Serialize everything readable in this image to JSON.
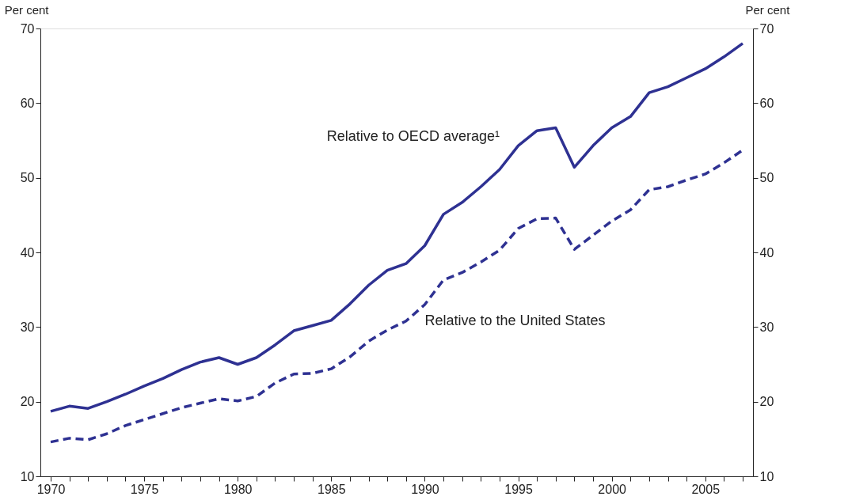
{
  "chart_data": {
    "type": "line",
    "x": [
      1970,
      1971,
      1972,
      1973,
      1974,
      1975,
      1976,
      1977,
      1978,
      1979,
      1980,
      1981,
      1982,
      1983,
      1984,
      1985,
      1986,
      1987,
      1988,
      1989,
      1990,
      1991,
      1992,
      1993,
      1994,
      1995,
      1996,
      1997,
      1998,
      1999,
      2000,
      2001,
      2002,
      2003,
      2004,
      2005,
      2006,
      2007
    ],
    "series": [
      {
        "name": "Relative to OECD average¹",
        "color": "#2e3192",
        "line_style": "solid",
        "values": [
          18.7,
          19.4,
          19.1,
          20.0,
          21.0,
          22.1,
          23.1,
          24.3,
          25.3,
          25.9,
          25.0,
          25.9,
          27.6,
          29.5,
          30.2,
          30.9,
          33.1,
          35.6,
          37.6,
          38.5,
          40.9,
          45.1,
          46.7,
          48.8,
          51.1,
          54.3,
          56.3,
          56.7,
          51.4,
          54.3,
          56.7,
          58.2,
          61.4,
          62.2,
          63.4,
          64.6,
          66.2,
          68.0
        ]
      },
      {
        "name": "Relative to the United States",
        "color": "#2e3192",
        "line_style": "dashed",
        "axis": "y2",
        "values": [
          14.6,
          15.1,
          14.9,
          15.7,
          16.8,
          17.6,
          18.4,
          19.2,
          19.8,
          20.4,
          20.1,
          20.7,
          22.5,
          23.7,
          23.8,
          24.4,
          26.0,
          28.1,
          29.6,
          30.8,
          33.0,
          36.3,
          37.3,
          38.7,
          40.3,
          43.2,
          44.5,
          44.6,
          40.4,
          42.3,
          44.2,
          45.7,
          48.4,
          48.8,
          49.7,
          50.5,
          52.0,
          53.7
        ]
      }
    ],
    "ylabel": "Per cent",
    "y2label": "Per cent",
    "ylim": [
      10,
      70
    ],
    "yticks": [
      10,
      20,
      30,
      40,
      50,
      60,
      70
    ],
    "y2lim": [
      10,
      70
    ],
    "y2ticks": [
      10,
      20,
      30,
      40,
      50,
      60,
      70
    ],
    "xlim": [
      1969.45,
      2007.55
    ],
    "xticks": [
      1970,
      {
        "value": 1971,
        "label": null
      },
      {
        "value": 1972,
        "label": null
      },
      {
        "value": 1973,
        "label": null
      },
      {
        "value": 1974,
        "label": null
      },
      1975,
      {
        "value": 1976,
        "label": null
      },
      {
        "value": 1977,
        "label": null
      },
      {
        "value": 1978,
        "label": null
      },
      {
        "value": 1979,
        "label": null
      },
      1980,
      {
        "value": 1981,
        "label": null
      },
      {
        "value": 1982,
        "label": null
      },
      {
        "value": 1983,
        "label": null
      },
      {
        "value": 1984,
        "label": null
      },
      1985,
      {
        "value": 1986,
        "label": null
      },
      {
        "value": 1987,
        "label": null
      },
      {
        "value": 1988,
        "label": null
      },
      {
        "value": 1989,
        "label": null
      },
      1990,
      {
        "value": 1991,
        "label": null
      },
      {
        "value": 1992,
        "label": null
      },
      {
        "value": 1993,
        "label": null
      },
      {
        "value": 1994,
        "label": null
      },
      1995,
      {
        "value": 1996,
        "label": null
      },
      {
        "value": 1997,
        "label": null
      },
      {
        "value": 1998,
        "label": null
      },
      {
        "value": 1999,
        "label": null
      },
      2000,
      {
        "value": 2001,
        "label": null
      },
      {
        "value": 2002,
        "label": null
      },
      {
        "value": 2003,
        "label": null
      },
      {
        "value": 2004,
        "label": null
      },
      2005,
      {
        "value": 2006,
        "label": null
      },
      {
        "value": 2007,
        "label": null
      }
    ],
    "grid": false,
    "legend": false
  }
}
